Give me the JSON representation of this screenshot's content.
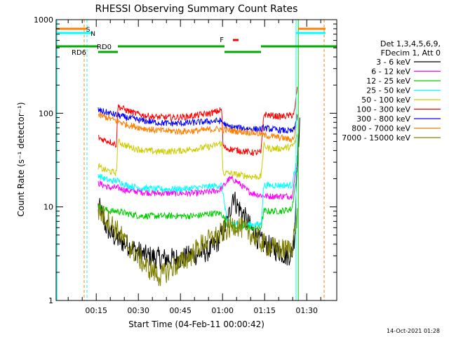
{
  "chart_data": {
    "type": "line",
    "title": "RHESSI Observing Summary Count Rates",
    "xlabel": "Start Time (04-Feb-11 00:00:42)",
    "ylabel": "Count Rate (s⁻¹ detector⁻¹)",
    "xlim_minutes": [
      0,
      100
    ],
    "ylim": [
      1,
      1000
    ],
    "yscale": "log",
    "x_tick_labels": [
      "00:15",
      "00:30",
      "00:45",
      "01:00",
      "01:15",
      "01:30"
    ],
    "y_tick_labels": [
      "1",
      "10",
      "100",
      "1000"
    ],
    "legend_position": "right",
    "legend_header": [
      "Det 1,3,4,5,6,9,",
      "FDecim 1, Att 0"
    ],
    "series": [
      {
        "name": "3 - 6 keV",
        "color": "#000000",
        "points": [
          [
            15,
            10
          ],
          [
            16,
            9
          ],
          [
            17,
            7
          ],
          [
            18,
            6
          ],
          [
            20,
            5
          ],
          [
            22,
            4.5
          ],
          [
            25,
            4
          ],
          [
            28,
            3.5
          ],
          [
            32,
            3
          ],
          [
            38,
            2.8
          ],
          [
            44,
            2.8
          ],
          [
            48,
            3
          ],
          [
            52,
            3.2
          ],
          [
            55,
            3.5
          ],
          [
            57,
            4
          ],
          [
            59,
            5
          ],
          [
            61,
            7
          ],
          [
            62,
            9
          ],
          [
            63,
            14
          ],
          [
            64,
            11
          ],
          [
            66,
            9
          ],
          [
            68,
            7
          ],
          [
            70,
            5.5
          ],
          [
            72,
            4.5
          ],
          [
            74,
            4
          ],
          [
            76,
            3.8
          ],
          [
            78,
            3.5
          ],
          [
            80,
            3.3
          ],
          [
            82,
            3
          ],
          [
            84,
            3.2
          ],
          [
            85,
            5
          ],
          [
            86,
            40
          ],
          [
            87,
            80
          ]
        ]
      },
      {
        "name": "6 - 12 keV",
        "color": "#ff00ff",
        "points": [
          [
            15,
            18
          ],
          [
            17,
            17
          ],
          [
            19,
            16
          ],
          [
            22,
            16
          ],
          [
            25,
            15
          ],
          [
            30,
            14.5
          ],
          [
            35,
            14
          ],
          [
            40,
            14
          ],
          [
            45,
            14
          ],
          [
            50,
            14
          ],
          [
            55,
            14.5
          ],
          [
            58,
            15
          ],
          [
            60,
            17
          ],
          [
            61,
            19
          ],
          [
            62,
            20
          ],
          [
            64,
            19
          ],
          [
            66,
            17
          ],
          [
            68,
            15
          ],
          [
            70,
            14
          ],
          [
            72,
            13.5
          ],
          [
            75,
            13
          ],
          [
            78,
            13
          ],
          [
            80,
            13
          ],
          [
            82,
            13
          ],
          [
            84,
            13
          ],
          [
            86,
            30
          ]
        ]
      },
      {
        "name": "12 - 25 keV",
        "color": "#00cc00",
        "points": [
          [
            15,
            10
          ],
          [
            17,
            9.5
          ],
          [
            19,
            9
          ],
          [
            22,
            9
          ],
          [
            25,
            8.5
          ],
          [
            30,
            8
          ],
          [
            35,
            8
          ],
          [
            40,
            8
          ],
          [
            45,
            8
          ],
          [
            50,
            8
          ],
          [
            55,
            8.5
          ],
          [
            58,
            8.5
          ],
          [
            59,
            8.5
          ],
          [
            61,
            6.5
          ],
          [
            65,
            6
          ],
          [
            70,
            6
          ],
          [
            73,
            6
          ],
          [
            74,
            9
          ],
          [
            76,
            9
          ],
          [
            80,
            9
          ],
          [
            84,
            9.5
          ],
          [
            86,
            25
          ]
        ]
      },
      {
        "name": "25 - 50 keV",
        "color": "#00ffff",
        "points": [
          [
            15,
            22
          ],
          [
            17,
            20
          ],
          [
            19,
            19
          ],
          [
            22,
            19
          ],
          [
            25,
            17
          ],
          [
            30,
            16
          ],
          [
            35,
            15.5
          ],
          [
            40,
            15.5
          ],
          [
            45,
            15.5
          ],
          [
            50,
            16
          ],
          [
            55,
            16.5
          ],
          [
            58,
            17
          ],
          [
            59,
            17
          ],
          [
            61,
            7
          ],
          [
            65,
            6.5
          ],
          [
            70,
            6.5
          ],
          [
            73,
            6.5
          ],
          [
            74,
            17
          ],
          [
            76,
            17
          ],
          [
            80,
            17
          ],
          [
            84,
            17
          ],
          [
            86,
            35
          ]
        ]
      },
      {
        "name": "50 - 100 keV",
        "color": "#cccc00",
        "points": [
          [
            15,
            27
          ],
          [
            17,
            25
          ],
          [
            19,
            24
          ],
          [
            21.5,
            23
          ],
          [
            22,
            50
          ],
          [
            23,
            48
          ],
          [
            25,
            45
          ],
          [
            28,
            42
          ],
          [
            32,
            40
          ],
          [
            36,
            39
          ],
          [
            40,
            39
          ],
          [
            45,
            40
          ],
          [
            50,
            42
          ],
          [
            55,
            44
          ],
          [
            58,
            47
          ],
          [
            59,
            48
          ],
          [
            59.5,
            23
          ],
          [
            61,
            23
          ],
          [
            65,
            22
          ],
          [
            70,
            21
          ],
          [
            73,
            21
          ],
          [
            74,
            45
          ],
          [
            76,
            42
          ],
          [
            80,
            42
          ],
          [
            84,
            44
          ],
          [
            85,
            48
          ],
          [
            86,
            60
          ]
        ]
      },
      {
        "name": "100 - 300 keV",
        "color": "#ff0000",
        "points": [
          [
            15,
            55
          ],
          [
            17,
            52
          ],
          [
            19,
            50
          ],
          [
            21.5,
            46
          ],
          [
            22,
            120
          ],
          [
            23,
            115
          ],
          [
            25,
            108
          ],
          [
            28,
            100
          ],
          [
            32,
            94
          ],
          [
            36,
            91
          ],
          [
            40,
            90
          ],
          [
            45,
            91
          ],
          [
            50,
            95
          ],
          [
            55,
            100
          ],
          [
            58,
            106
          ],
          [
            59,
            110
          ],
          [
            59.5,
            44
          ],
          [
            61,
            42
          ],
          [
            65,
            40
          ],
          [
            70,
            38
          ],
          [
            73,
            38
          ],
          [
            74,
            98
          ],
          [
            76,
            95
          ],
          [
            80,
            92
          ],
          [
            84,
            95
          ],
          [
            85,
            105
          ],
          [
            86,
            200
          ]
        ]
      },
      {
        "name": "300 - 800 keV",
        "color": "#0000ff",
        "points": [
          [
            15,
            108
          ],
          [
            17,
            104
          ],
          [
            19,
            100
          ],
          [
            22,
            95
          ],
          [
            25,
            90
          ],
          [
            30,
            84
          ],
          [
            35,
            80
          ],
          [
            40,
            78
          ],
          [
            45,
            78
          ],
          [
            50,
            80
          ],
          [
            55,
            82
          ],
          [
            58,
            83
          ],
          [
            59,
            82
          ],
          [
            61,
            72
          ],
          [
            65,
            70
          ],
          [
            70,
            68
          ],
          [
            73,
            67
          ],
          [
            74,
            70
          ],
          [
            76,
            68
          ],
          [
            80,
            66
          ],
          [
            84,
            64
          ],
          [
            85,
            68
          ],
          [
            86,
            100
          ]
        ]
      },
      {
        "name": "800 - 7000 keV",
        "color": "#ff8000",
        "points": [
          [
            15,
            95
          ],
          [
            17,
            92
          ],
          [
            19,
            88
          ],
          [
            22,
            82
          ],
          [
            25,
            76
          ],
          [
            30,
            70
          ],
          [
            35,
            66
          ],
          [
            40,
            65
          ],
          [
            45,
            64
          ],
          [
            50,
            65
          ],
          [
            55,
            67
          ],
          [
            58,
            68
          ],
          [
            59,
            67
          ],
          [
            61,
            66
          ],
          [
            65,
            64
          ],
          [
            70,
            62
          ],
          [
            73,
            60
          ],
          [
            74,
            58
          ],
          [
            76,
            57
          ],
          [
            80,
            55
          ],
          [
            84,
            52
          ],
          [
            85,
            58
          ],
          [
            86,
            110
          ]
        ]
      },
      {
        "name": "7000 - 15000 keV",
        "color": "#808000",
        "points": [
          [
            15,
            9
          ],
          [
            17,
            8
          ],
          [
            19,
            7
          ],
          [
            21,
            6
          ],
          [
            23,
            5
          ],
          [
            25,
            4
          ],
          [
            27,
            3.5
          ],
          [
            29,
            3
          ],
          [
            31,
            2.5
          ],
          [
            33,
            2.2
          ],
          [
            35,
            2
          ],
          [
            37,
            1.8
          ],
          [
            39,
            2
          ],
          [
            42,
            2.3
          ],
          [
            45,
            2.6
          ],
          [
            48,
            3
          ],
          [
            50,
            3.5
          ],
          [
            52,
            4
          ],
          [
            55,
            4.5
          ],
          [
            58,
            5
          ],
          [
            60,
            5.5
          ],
          [
            62,
            6
          ],
          [
            64,
            6.5
          ],
          [
            66,
            6
          ],
          [
            68,
            5.5
          ],
          [
            70,
            5
          ],
          [
            72,
            4.5
          ],
          [
            74,
            4
          ],
          [
            76,
            3.8
          ],
          [
            78,
            3.6
          ],
          [
            80,
            3.5
          ],
          [
            82,
            3.5
          ],
          [
            84,
            3.8
          ],
          [
            86,
            8
          ]
        ]
      }
    ],
    "attenuator_states": {
      "labels": [
        "RD0",
        "RD6"
      ],
      "segments": [
        [
          0,
          15
        ],
        [
          15,
          22
        ],
        [
          22,
          60
        ],
        [
          60,
          73
        ],
        [
          73,
          100
        ]
      ]
    },
    "saa_label": "S",
    "night_label": "N",
    "flare_label": "F",
    "timestamp": "14-Oct-2021 01:28"
  }
}
